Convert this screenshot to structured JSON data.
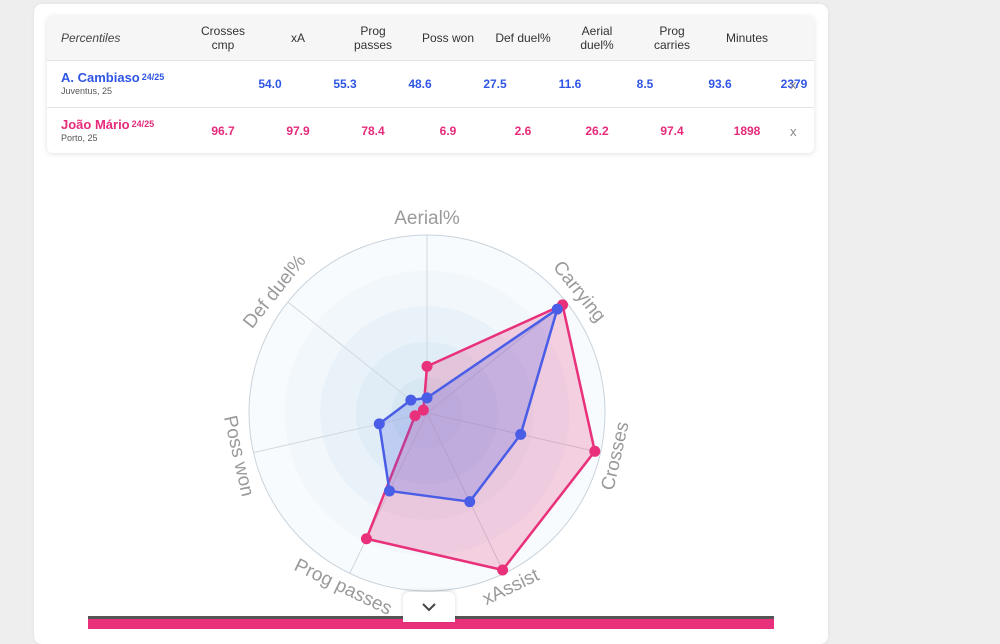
{
  "table": {
    "headers": [
      "Percentiles",
      "Crosses\ncmp",
      "xA",
      "Prog\npasses",
      "Poss won",
      "Def duel%",
      "Aerial\nduel%",
      "Prog\ncarries",
      "Minutes"
    ],
    "players": [
      {
        "name": "A. Cambiaso",
        "season": "24/25",
        "club": "Juventus, 25",
        "color": "#2f55e4",
        "values": [
          "54.0",
          "55.3",
          "48.6",
          "27.5",
          "11.6",
          "8.5",
          "93.6",
          "2379"
        ],
        "remove": "x"
      },
      {
        "name": "João Mário",
        "season": "24/25",
        "club": "Porto, 25",
        "color": "#e52a7a",
        "values": [
          "96.7",
          "97.9",
          "78.4",
          "6.9",
          "2.6",
          "26.2",
          "97.4",
          "1898"
        ],
        "remove": "x"
      }
    ]
  },
  "chart_data": {
    "type": "radar",
    "axes": [
      "Aerial%",
      "Carrying",
      "Crosses",
      "xAssist",
      "Prog passes",
      "Poss won",
      "Def duel%"
    ],
    "range": [
      0,
      100
    ],
    "series": [
      {
        "name": "A. Cambiaso",
        "color": "#4a5de6",
        "values": [
          8.5,
          93.6,
          54.0,
          55.3,
          48.6,
          27.5,
          11.6
        ]
      },
      {
        "name": "João Mário",
        "color": "#e8317a",
        "values": [
          26.2,
          97.4,
          96.7,
          97.9,
          78.4,
          6.9,
          2.6
        ]
      }
    ],
    "rings": 5
  },
  "icons": {
    "collapse": "chevron-down-icon",
    "remove": "close-icon"
  }
}
